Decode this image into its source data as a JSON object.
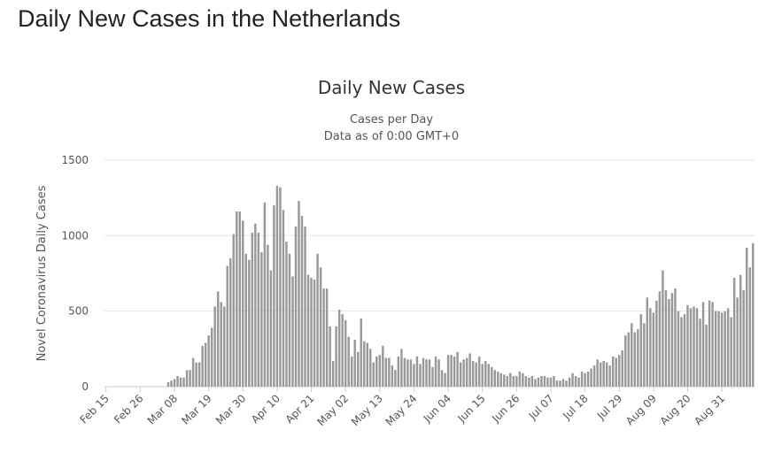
{
  "page": {
    "heading": "Daily New Cases in the Netherlands"
  },
  "chart_data": {
    "type": "bar",
    "title": "Daily New Cases",
    "subtitle_lines": [
      "Cases per Day",
      "Data as of 0:00 GMT+0"
    ],
    "xlabel": "",
    "ylabel": "Novel Coronavirus Daily Cases",
    "ylim": [
      0,
      1500
    ],
    "yticks": [
      0,
      500,
      1000,
      1500
    ],
    "grid": true,
    "legend": "none",
    "bar_color": "#999999",
    "start_date": "Feb 15",
    "x_tick_labels": [
      "Feb 15",
      "Feb 26",
      "Mar 08",
      "Mar 19",
      "Mar 30",
      "Apr 10",
      "Apr 21",
      "May 02",
      "May 13",
      "May 24",
      "Jun 04",
      "Jun 15",
      "Jun 26",
      "Jul 07",
      "Jul 18",
      "Jul 29",
      "Aug 09",
      "Aug 20",
      "Aug 31"
    ],
    "x_tick_every": 11,
    "values": [
      0,
      0,
      0,
      0,
      0,
      0,
      0,
      0,
      0,
      0,
      0,
      0,
      0,
      0,
      0,
      0,
      0,
      0,
      0,
      0,
      30,
      40,
      50,
      70,
      60,
      60,
      110,
      110,
      190,
      160,
      160,
      270,
      290,
      340,
      390,
      530,
      630,
      560,
      530,
      800,
      850,
      1010,
      1160,
      1160,
      1100,
      880,
      840,
      1020,
      1080,
      1020,
      890,
      1220,
      940,
      770,
      1200,
      1330,
      1320,
      1170,
      960,
      880,
      730,
      1060,
      1230,
      1130,
      1060,
      740,
      720,
      710,
      880,
      790,
      650,
      650,
      400,
      170,
      400,
      510,
      480,
      440,
      330,
      200,
      310,
      230,
      450,
      300,
      290,
      250,
      160,
      200,
      210,
      270,
      190,
      190,
      140,
      110,
      200,
      250,
      190,
      180,
      180,
      150,
      200,
      150,
      190,
      180,
      180,
      130,
      200,
      180,
      110,
      90,
      210,
      210,
      200,
      230,
      160,
      180,
      190,
      220,
      170,
      160,
      200,
      150,
      170,
      150,
      130,
      110,
      100,
      90,
      80,
      70,
      90,
      70,
      70,
      100,
      90,
      70,
      60,
      70,
      50,
      60,
      70,
      70,
      60,
      60,
      70,
      40,
      40,
      50,
      40,
      60,
      90,
      70,
      60,
      100,
      90,
      100,
      120,
      140,
      180,
      160,
      170,
      160,
      140,
      200,
      190,
      210,
      240,
      340,
      360,
      420,
      360,
      380,
      480,
      420,
      590,
      520,
      490,
      570,
      630,
      770,
      640,
      580,
      620,
      650,
      500,
      460,
      480,
      540,
      520,
      530,
      520,
      450,
      560,
      410,
      570,
      560,
      500,
      500,
      490,
      500,
      520,
      460,
      720,
      590,
      740,
      640,
      920,
      790,
      950
    ]
  }
}
